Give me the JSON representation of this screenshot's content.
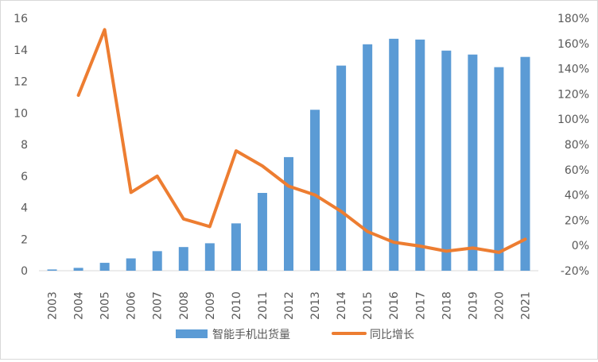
{
  "chart_data": {
    "type": "bar+line",
    "categories": [
      "2003",
      "2004",
      "2005",
      "2006",
      "2007",
      "2008",
      "2009",
      "2010",
      "2011",
      "2012",
      "2013",
      "2014",
      "2015",
      "2016",
      "2017",
      "2018",
      "2019",
      "2020",
      "2021"
    ],
    "series": [
      {
        "name": "智能手机出货量",
        "type": "bar",
        "axis": "left",
        "color": "#5b9bd5",
        "values": [
          0.08,
          0.18,
          0.5,
          0.78,
          1.24,
          1.5,
          1.74,
          3.0,
          4.93,
          7.2,
          10.2,
          13.0,
          14.35,
          14.7,
          14.65,
          13.95,
          13.7,
          12.9,
          13.55
        ]
      },
      {
        "name": "同比增长",
        "type": "line",
        "axis": "right",
        "color": "#ed7d31",
        "values": [
          null,
          1.19,
          1.71,
          0.42,
          0.55,
          0.21,
          0.15,
          0.75,
          0.63,
          0.47,
          0.4,
          0.27,
          0.11,
          0.025,
          -0.005,
          -0.045,
          -0.02,
          -0.055,
          0.05
        ]
      }
    ],
    "y_left": {
      "min": 0,
      "max": 16,
      "step": 2,
      "ticks": [
        "0",
        "2",
        "4",
        "6",
        "8",
        "10",
        "12",
        "14",
        "16"
      ]
    },
    "y_right": {
      "min": -0.2,
      "max": 1.8,
      "step": 0.2,
      "ticks": [
        "-20%",
        "0%",
        "20%",
        "40%",
        "60%",
        "80%",
        "100%",
        "120%",
        "140%",
        "160%",
        "180%"
      ]
    },
    "grid": false,
    "legend_position": "bottom"
  }
}
